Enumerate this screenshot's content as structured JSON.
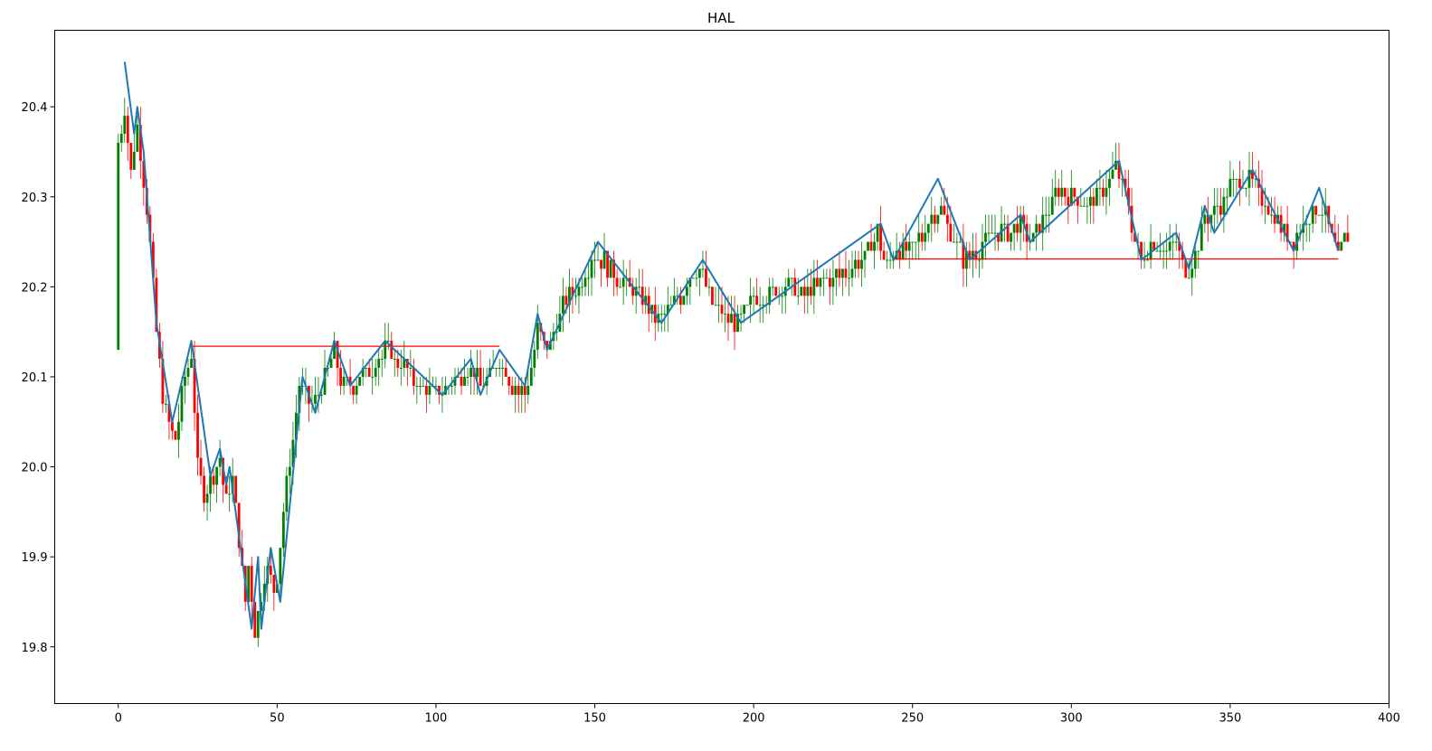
{
  "chart_data": {
    "type": "candlestick",
    "title": "HAL",
    "xlabel": "",
    "ylabel": "",
    "xlim": [
      -20,
      400
    ],
    "ylim": [
      19.737,
      20.485
    ],
    "x_ticks": [
      0,
      50,
      100,
      150,
      200,
      250,
      300,
      350,
      400
    ],
    "y_ticks": [
      19.8,
      19.9,
      20.0,
      20.1,
      20.2,
      20.3,
      20.4
    ],
    "grid": false,
    "colors": {
      "up": "#008000",
      "down": "#ff0000",
      "zigzag": "#1f77b4",
      "level": "#ff0000",
      "frame": "#000000"
    },
    "series": [
      {
        "kind": "candles",
        "close_anchors": [
          [
            0,
            20.36
          ],
          [
            2,
            20.4
          ],
          [
            4,
            20.33
          ],
          [
            6,
            20.38
          ],
          [
            8,
            20.32
          ],
          [
            10,
            20.25
          ],
          [
            12,
            20.15
          ],
          [
            14,
            20.08
          ],
          [
            16,
            20.05
          ],
          [
            18,
            20.03
          ],
          [
            20,
            20.08
          ],
          [
            23,
            20.13
          ],
          [
            25,
            20.0
          ],
          [
            27,
            19.97
          ],
          [
            30,
            19.99
          ],
          [
            32,
            20.01
          ],
          [
            34,
            19.96
          ],
          [
            36,
            19.99
          ],
          [
            38,
            19.92
          ],
          [
            40,
            19.85
          ],
          [
            41,
            19.89
          ],
          [
            43,
            19.82
          ],
          [
            45,
            19.86
          ],
          [
            47,
            19.89
          ],
          [
            49,
            19.86
          ],
          [
            50,
            19.88
          ],
          [
            53,
            19.98
          ],
          [
            57,
            20.09
          ],
          [
            61,
            20.07
          ],
          [
            64,
            20.09
          ],
          [
            68,
            20.13
          ],
          [
            70,
            20.1
          ],
          [
            73,
            20.09
          ],
          [
            80,
            20.11
          ],
          [
            84,
            20.13
          ],
          [
            90,
            20.11
          ],
          [
            95,
            20.09
          ],
          [
            102,
            20.08
          ],
          [
            107,
            20.1
          ],
          [
            111,
            20.11
          ],
          [
            114,
            20.09
          ],
          [
            120,
            20.12
          ],
          [
            124,
            20.09
          ],
          [
            128,
            20.08
          ],
          [
            132,
            20.15
          ],
          [
            135,
            20.13
          ],
          [
            140,
            20.18
          ],
          [
            145,
            20.2
          ],
          [
            150,
            20.24
          ],
          [
            155,
            20.22
          ],
          [
            160,
            20.2
          ],
          [
            166,
            20.18
          ],
          [
            170,
            20.16
          ],
          [
            175,
            20.18
          ],
          [
            180,
            20.21
          ],
          [
            183,
            20.22
          ],
          [
            186,
            20.19
          ],
          [
            190,
            20.17
          ],
          [
            195,
            20.16
          ],
          [
            200,
            20.19
          ],
          [
            205,
            20.19
          ],
          [
            210,
            20.2
          ],
          [
            215,
            20.19
          ],
          [
            220,
            20.2
          ],
          [
            225,
            20.21
          ],
          [
            230,
            20.22
          ],
          [
            235,
            20.23
          ],
          [
            239,
            20.26
          ],
          [
            242,
            20.22
          ],
          [
            245,
            20.24
          ],
          [
            250,
            20.24
          ],
          [
            255,
            20.27
          ],
          [
            258,
            20.29
          ],
          [
            262,
            20.26
          ],
          [
            266,
            20.23
          ],
          [
            270,
            20.24
          ],
          [
            275,
            20.26
          ],
          [
            280,
            20.26
          ],
          [
            284,
            20.27
          ],
          [
            287,
            20.25
          ],
          [
            292,
            20.28
          ],
          [
            296,
            20.31
          ],
          [
            300,
            20.3
          ],
          [
            305,
            20.29
          ],
          [
            310,
            20.31
          ],
          [
            314,
            20.33
          ],
          [
            318,
            20.29
          ],
          [
            320,
            20.25
          ],
          [
            322,
            20.23
          ],
          [
            326,
            20.25
          ],
          [
            330,
            20.24
          ],
          [
            333,
            20.25
          ],
          [
            335,
            20.22
          ],
          [
            337,
            20.22
          ],
          [
            340,
            20.25
          ],
          [
            342,
            20.28
          ],
          [
            345,
            20.28
          ],
          [
            350,
            20.31
          ],
          [
            356,
            20.32
          ],
          [
            360,
            20.3
          ],
          [
            365,
            20.27
          ],
          [
            370,
            20.25
          ],
          [
            375,
            20.28
          ],
          [
            378,
            20.29
          ],
          [
            381,
            20.27
          ],
          [
            384,
            20.23
          ],
          [
            387,
            20.26
          ]
        ]
      },
      {
        "kind": "zigzag",
        "points": [
          [
            2,
            20.45
          ],
          [
            5,
            20.37
          ],
          [
            6,
            20.4
          ],
          [
            8,
            20.35
          ],
          [
            12,
            20.16
          ],
          [
            17,
            20.05
          ],
          [
            23,
            20.14
          ],
          [
            29,
            19.99
          ],
          [
            32,
            20.02
          ],
          [
            34,
            19.98
          ],
          [
            35,
            20.0
          ],
          [
            42,
            19.82
          ],
          [
            44,
            19.9
          ],
          [
            45,
            19.82
          ],
          [
            48,
            19.91
          ],
          [
            51,
            19.85
          ],
          [
            58,
            20.1
          ],
          [
            62,
            20.06
          ],
          [
            68,
            20.14
          ],
          [
            73,
            20.09
          ],
          [
            84,
            20.14
          ],
          [
            102,
            20.08
          ],
          [
            111,
            20.12
          ],
          [
            114,
            20.08
          ],
          [
            120,
            20.13
          ],
          [
            128,
            20.09
          ],
          [
            132,
            20.17
          ],
          [
            135,
            20.13
          ],
          [
            151,
            20.25
          ],
          [
            171,
            20.16
          ],
          [
            184,
            20.23
          ],
          [
            196,
            20.16
          ],
          [
            240,
            20.27
          ],
          [
            244,
            20.23
          ],
          [
            258,
            20.32
          ],
          [
            268,
            20.23
          ],
          [
            284,
            20.28
          ],
          [
            287,
            20.25
          ],
          [
            315,
            20.34
          ],
          [
            322,
            20.23
          ],
          [
            333,
            20.26
          ],
          [
            337,
            20.22
          ],
          [
            342,
            20.29
          ],
          [
            345,
            20.26
          ],
          [
            357,
            20.33
          ],
          [
            370,
            20.24
          ],
          [
            378,
            20.31
          ],
          [
            384,
            20.24
          ]
        ]
      },
      {
        "kind": "hline",
        "x_start": 23,
        "x_end": 120,
        "value": 20.134
      },
      {
        "kind": "hline",
        "x_start": 244,
        "x_end": 384,
        "value": 20.231
      }
    ]
  }
}
